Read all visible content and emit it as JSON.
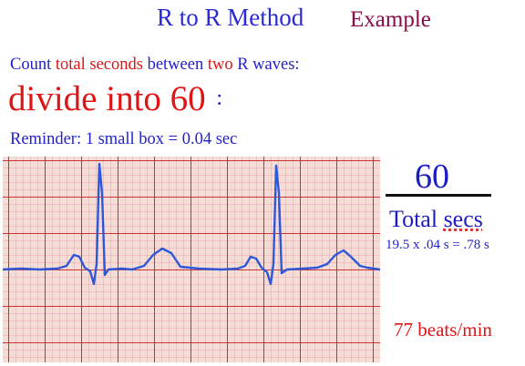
{
  "slide": {
    "title": "R to R Method",
    "tag": "Example",
    "instruction_prefix": "Count ",
    "instruction_highlight1": "total seconds",
    "instruction_middle": " between ",
    "instruction_highlight2": "two",
    "instruction_suffix": " R waves:",
    "divide_text": "divide into 60",
    "divide_colon": ":",
    "reminder": "Reminder: 1 small box = 0.04 sec",
    "fraction_numerator": "60",
    "fraction_denominator_word1": "Total",
    "fraction_denominator_word2": "secs",
    "calculation": "19.5 x .04 s = .78 s",
    "result": "77 beats/min"
  },
  "colors": {
    "title_blue": "#2a2ad6",
    "accent_red": "#e01414",
    "example_maroon": "#8b0a4a",
    "grid_minor": "#f09090",
    "grid_major": "#c41e1e",
    "trace_blue": "#2f57d9"
  }
}
